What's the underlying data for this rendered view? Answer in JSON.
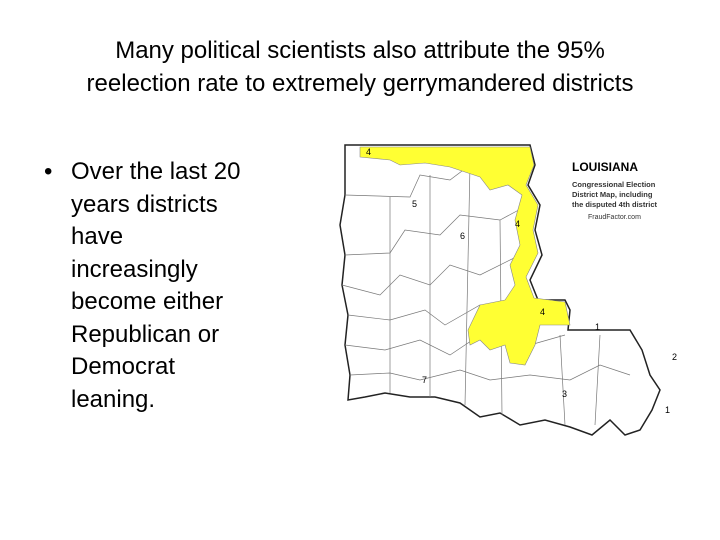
{
  "slide": {
    "title_lines": [
      "Many political scientists also attribute the 95%",
      "reelection rate to extremely gerrymandered districts"
    ],
    "bullet_lines": [
      "Over the last 20",
      "years districts",
      "have",
      "increasingly",
      "become either",
      "Republican or",
      "Democrat",
      "leaning."
    ],
    "map": {
      "heading": "LOUISIANA",
      "caption_lines": [
        "Congressional Election",
        "District Map, including",
        "the disputed 4th district"
      ],
      "credit": "FraudFactor.com",
      "district_labels": [
        "4",
        "5",
        "6",
        "4",
        "4",
        "1",
        "2",
        "7",
        "3",
        "1"
      ]
    }
  }
}
